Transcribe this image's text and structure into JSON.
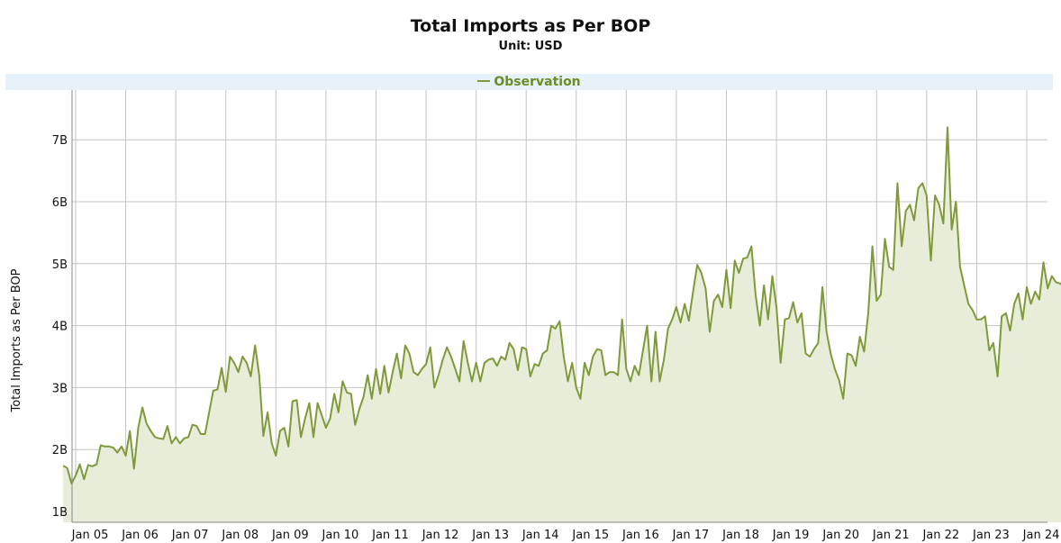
{
  "chart_data": {
    "type": "area",
    "title": "Total Imports as Per BOP",
    "subtitle": "Unit: USD",
    "ylabel": "Total Imports as Per BOP",
    "legend": {
      "label": "Observation",
      "placement": "top"
    },
    "ylim": [
      1000000000.0,
      7800000000.0
    ],
    "yticks": [
      {
        "value": 1000000000.0,
        "label": "1B"
      },
      {
        "value": 2000000000.0,
        "label": "2B"
      },
      {
        "value": 3000000000.0,
        "label": "3B"
      },
      {
        "value": 4000000000.0,
        "label": "4B"
      },
      {
        "value": 5000000000.0,
        "label": "5B"
      },
      {
        "value": 6000000000.0,
        "label": "6B"
      },
      {
        "value": 7000000000.0,
        "label": "7B"
      }
    ],
    "xticks": [
      "Jan 05",
      "Jan 06",
      "Jan 07",
      "Jan 08",
      "Jan 09",
      "Jan 10",
      "Jan 11",
      "Jan 12",
      "Jan 13",
      "Jan 14",
      "Jan 15",
      "Jan 16",
      "Jan 17",
      "Jan 18",
      "Jan 19",
      "Jan 20",
      "Jan 21",
      "Jan 22",
      "Jan 23",
      "Jan 24"
    ],
    "x_start": "2004-10",
    "x_end": "2024-07",
    "grid": true,
    "colors": {
      "line": "#7f9a3a",
      "fill": "#e8edd9",
      "grid": "#c4c4c4",
      "legend_bg": "#e6f1fa"
    },
    "series": [
      {
        "name": "Observation",
        "points": [
          [
            "2004-10",
            1.74
          ],
          [
            "2004-11",
            1.7
          ],
          [
            "2004-12",
            1.45
          ],
          [
            "2005-01",
            1.58
          ],
          [
            "2005-02",
            1.76
          ],
          [
            "2005-03",
            1.52
          ],
          [
            "2005-04",
            1.75
          ],
          [
            "2005-05",
            1.73
          ],
          [
            "2005-06",
            1.76
          ],
          [
            "2005-07",
            2.07
          ],
          [
            "2005-08",
            2.05
          ],
          [
            "2005-09",
            2.05
          ],
          [
            "2005-10",
            2.03
          ],
          [
            "2005-11",
            1.95
          ],
          [
            "2005-12",
            2.05
          ],
          [
            "2006-01",
            1.9
          ],
          [
            "2006-02",
            2.3
          ],
          [
            "2006-03",
            1.69
          ],
          [
            "2006-04",
            2.35
          ],
          [
            "2006-05",
            2.68
          ],
          [
            "2006-06",
            2.42
          ],
          [
            "2006-07",
            2.3
          ],
          [
            "2006-08",
            2.2
          ],
          [
            "2006-09",
            2.18
          ],
          [
            "2006-10",
            2.17
          ],
          [
            "2006-11",
            2.38
          ],
          [
            "2006-12",
            2.1
          ],
          [
            "2007-01",
            2.2
          ],
          [
            "2007-02",
            2.1
          ],
          [
            "2007-03",
            2.18
          ],
          [
            "2007-04",
            2.2
          ],
          [
            "2007-05",
            2.4
          ],
          [
            "2007-06",
            2.38
          ],
          [
            "2007-07",
            2.25
          ],
          [
            "2007-08",
            2.25
          ],
          [
            "2007-09",
            2.6
          ],
          [
            "2007-10",
            2.95
          ],
          [
            "2007-11",
            2.97
          ],
          [
            "2007-12",
            3.32
          ],
          [
            "2008-01",
            2.93
          ],
          [
            "2008-02",
            3.5
          ],
          [
            "2008-03",
            3.4
          ],
          [
            "2008-04",
            3.25
          ],
          [
            "2008-05",
            3.5
          ],
          [
            "2008-06",
            3.4
          ],
          [
            "2008-07",
            3.18
          ],
          [
            "2008-08",
            3.68
          ],
          [
            "2008-09",
            3.2
          ],
          [
            "2008-10",
            2.22
          ],
          [
            "2008-11",
            2.6
          ],
          [
            "2008-12",
            2.1
          ],
          [
            "2009-01",
            1.9
          ],
          [
            "2009-02",
            2.3
          ],
          [
            "2009-03",
            2.35
          ],
          [
            "2009-04",
            2.05
          ],
          [
            "2009-05",
            2.78
          ],
          [
            "2009-06",
            2.8
          ],
          [
            "2009-07",
            2.2
          ],
          [
            "2009-08",
            2.5
          ],
          [
            "2009-09",
            2.75
          ],
          [
            "2009-10",
            2.2
          ],
          [
            "2009-11",
            2.75
          ],
          [
            "2009-12",
            2.55
          ],
          [
            "2010-01",
            2.35
          ],
          [
            "2010-02",
            2.5
          ],
          [
            "2010-03",
            2.9
          ],
          [
            "2010-04",
            2.6
          ],
          [
            "2010-05",
            3.1
          ],
          [
            "2010-06",
            2.92
          ],
          [
            "2010-07",
            2.9
          ],
          [
            "2010-08",
            2.4
          ],
          [
            "2010-09",
            2.65
          ],
          [
            "2010-10",
            2.85
          ],
          [
            "2010-11",
            3.2
          ],
          [
            "2010-12",
            2.82
          ],
          [
            "2011-01",
            3.3
          ],
          [
            "2011-02",
            2.9
          ],
          [
            "2011-03",
            3.35
          ],
          [
            "2011-04",
            2.92
          ],
          [
            "2011-05",
            3.25
          ],
          [
            "2011-06",
            3.55
          ],
          [
            "2011-07",
            3.15
          ],
          [
            "2011-08",
            3.68
          ],
          [
            "2011-09",
            3.55
          ],
          [
            "2011-10",
            3.25
          ],
          [
            "2011-11",
            3.2
          ],
          [
            "2011-12",
            3.3
          ],
          [
            "2012-01",
            3.38
          ],
          [
            "2012-02",
            3.65
          ],
          [
            "2012-03",
            3.0
          ],
          [
            "2012-04",
            3.2
          ],
          [
            "2012-05",
            3.45
          ],
          [
            "2012-06",
            3.65
          ],
          [
            "2012-07",
            3.5
          ],
          [
            "2012-08",
            3.3
          ],
          [
            "2012-09",
            3.1
          ],
          [
            "2012-10",
            3.75
          ],
          [
            "2012-11",
            3.4
          ],
          [
            "2012-12",
            3.1
          ],
          [
            "2013-01",
            3.4
          ],
          [
            "2013-02",
            3.1
          ],
          [
            "2013-03",
            3.4
          ],
          [
            "2013-04",
            3.45
          ],
          [
            "2013-05",
            3.47
          ],
          [
            "2013-06",
            3.35
          ],
          [
            "2013-07",
            3.5
          ],
          [
            "2013-08",
            3.45
          ],
          [
            "2013-09",
            3.72
          ],
          [
            "2013-10",
            3.62
          ],
          [
            "2013-11",
            3.28
          ],
          [
            "2013-12",
            3.65
          ],
          [
            "2014-01",
            3.62
          ],
          [
            "2014-02",
            3.18
          ],
          [
            "2014-03",
            3.38
          ],
          [
            "2014-04",
            3.35
          ],
          [
            "2014-05",
            3.55
          ],
          [
            "2014-06",
            3.6
          ],
          [
            "2014-07",
            4.0
          ],
          [
            "2014-08",
            3.95
          ],
          [
            "2014-09",
            4.07
          ],
          [
            "2014-10",
            3.5
          ],
          [
            "2014-11",
            3.1
          ],
          [
            "2014-12",
            3.4
          ],
          [
            "2015-01",
            3.0
          ],
          [
            "2015-02",
            2.82
          ],
          [
            "2015-03",
            3.4
          ],
          [
            "2015-04",
            3.2
          ],
          [
            "2015-05",
            3.5
          ],
          [
            "2015-06",
            3.62
          ],
          [
            "2015-07",
            3.6
          ],
          [
            "2015-08",
            3.2
          ],
          [
            "2015-09",
            3.25
          ],
          [
            "2015-10",
            3.25
          ],
          [
            "2015-11",
            3.2
          ],
          [
            "2015-12",
            4.1
          ],
          [
            "2016-01",
            3.3
          ],
          [
            "2016-02",
            3.1
          ],
          [
            "2016-03",
            3.35
          ],
          [
            "2016-04",
            3.2
          ],
          [
            "2016-05",
            3.6
          ],
          [
            "2016-06",
            4.0
          ],
          [
            "2016-07",
            3.1
          ],
          [
            "2016-08",
            3.9
          ],
          [
            "2016-09",
            3.1
          ],
          [
            "2016-10",
            3.45
          ],
          [
            "2016-11",
            3.95
          ],
          [
            "2016-12",
            4.1
          ],
          [
            "2017-01",
            4.3
          ],
          [
            "2017-02",
            4.05
          ],
          [
            "2017-03",
            4.35
          ],
          [
            "2017-04",
            4.08
          ],
          [
            "2017-05",
            4.55
          ],
          [
            "2017-06",
            4.98
          ],
          [
            "2017-07",
            4.85
          ],
          [
            "2017-08",
            4.6
          ],
          [
            "2017-09",
            3.9
          ],
          [
            "2017-10",
            4.4
          ],
          [
            "2017-11",
            4.5
          ],
          [
            "2017-12",
            4.3
          ],
          [
            "2018-01",
            4.9
          ],
          [
            "2018-02",
            4.28
          ],
          [
            "2018-03",
            5.05
          ],
          [
            "2018-04",
            4.85
          ],
          [
            "2018-05",
            5.08
          ],
          [
            "2018-06",
            5.1
          ],
          [
            "2018-07",
            5.28
          ],
          [
            "2018-08",
            4.5
          ],
          [
            "2018-09",
            4.0
          ],
          [
            "2018-10",
            4.65
          ],
          [
            "2018-11",
            4.1
          ],
          [
            "2018-12",
            4.8
          ],
          [
            "2019-01",
            4.3
          ],
          [
            "2019-02",
            3.4
          ],
          [
            "2019-03",
            4.1
          ],
          [
            "2019-04",
            4.12
          ],
          [
            "2019-05",
            4.38
          ],
          [
            "2019-06",
            4.05
          ],
          [
            "2019-07",
            4.2
          ],
          [
            "2019-08",
            3.55
          ],
          [
            "2019-09",
            3.5
          ],
          [
            "2019-10",
            3.62
          ],
          [
            "2019-11",
            3.72
          ],
          [
            "2019-12",
            4.62
          ],
          [
            "2020-01",
            3.9
          ],
          [
            "2020-02",
            3.55
          ],
          [
            "2020-03",
            3.3
          ],
          [
            "2020-04",
            3.12
          ],
          [
            "2020-05",
            2.82
          ],
          [
            "2020-06",
            3.55
          ],
          [
            "2020-07",
            3.52
          ],
          [
            "2020-08",
            3.35
          ],
          [
            "2020-09",
            3.82
          ],
          [
            "2020-10",
            3.58
          ],
          [
            "2020-11",
            4.2
          ],
          [
            "2020-12",
            5.28
          ],
          [
            "2021-01",
            4.4
          ],
          [
            "2021-02",
            4.5
          ],
          [
            "2021-03",
            5.4
          ],
          [
            "2021-04",
            4.95
          ],
          [
            "2021-05",
            4.9
          ],
          [
            "2021-06",
            6.3
          ],
          [
            "2021-07",
            5.28
          ],
          [
            "2021-08",
            5.85
          ],
          [
            "2021-09",
            5.95
          ],
          [
            "2021-10",
            5.7
          ],
          [
            "2021-11",
            6.22
          ],
          [
            "2021-12",
            6.3
          ],
          [
            "2022-01",
            6.1
          ],
          [
            "2022-02",
            5.05
          ],
          [
            "2022-03",
            6.1
          ],
          [
            "2022-04",
            5.95
          ],
          [
            "2022-05",
            5.65
          ],
          [
            "2022-06",
            7.2
          ],
          [
            "2022-07",
            5.55
          ],
          [
            "2022-08",
            6.0
          ],
          [
            "2022-09",
            4.95
          ],
          [
            "2022-10",
            4.65
          ],
          [
            "2022-11",
            4.35
          ],
          [
            "2022-12",
            4.25
          ],
          [
            "2023-01",
            4.1
          ],
          [
            "2023-02",
            4.1
          ],
          [
            "2023-03",
            4.15
          ],
          [
            "2023-04",
            3.6
          ],
          [
            "2023-05",
            3.72
          ],
          [
            "2023-06",
            3.18
          ],
          [
            "2023-07",
            4.15
          ],
          [
            "2023-08",
            4.2
          ],
          [
            "2023-09",
            3.92
          ],
          [
            "2023-10",
            4.35
          ],
          [
            "2023-11",
            4.52
          ],
          [
            "2023-12",
            4.1
          ],
          [
            "2024-01",
            4.62
          ],
          [
            "2024-02",
            4.35
          ],
          [
            "2024-03",
            4.55
          ],
          [
            "2024-04",
            4.42
          ],
          [
            "2024-05",
            5.02
          ],
          [
            "2024-06",
            4.6
          ],
          [
            "2024-07",
            4.8
          ],
          [
            "2024-08",
            4.7
          ],
          [
            "2024-09",
            4.68
          ],
          [
            "2024-10",
            4.6
          ]
        ],
        "unit_multiplier": 1000000000.0
      }
    ]
  }
}
